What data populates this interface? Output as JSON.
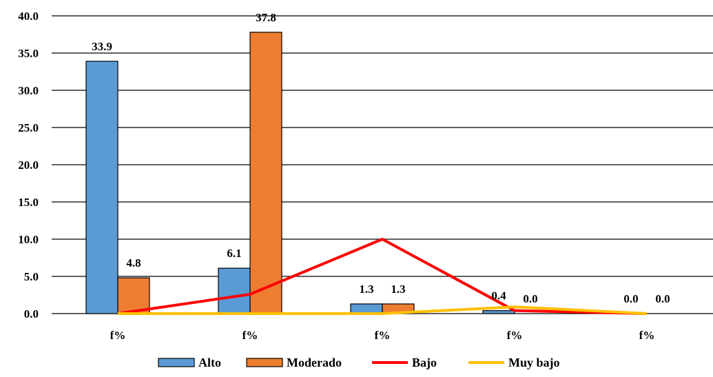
{
  "chart_data": {
    "type": "bar",
    "categories": [
      "f%",
      "f%",
      "f%",
      "f%",
      "f%"
    ],
    "ylim": [
      0,
      40
    ],
    "yticks": [
      "0.0",
      "5.0",
      "10.0",
      "15.0",
      "20.0",
      "25.0",
      "30.0",
      "35.0",
      "40.0"
    ],
    "grid": true,
    "legend_position": "bottom",
    "series": [
      {
        "name": "Alto",
        "kind": "bar",
        "color": "#5b9bd5",
        "values": [
          33.9,
          6.1,
          1.3,
          0.4,
          0.0
        ],
        "labels": [
          "33.9",
          "6.1",
          "1.3",
          "0.4",
          "0.0"
        ]
      },
      {
        "name": "Moderado",
        "kind": "bar",
        "color": "#ed7d31",
        "values": [
          4.8,
          37.8,
          1.3,
          0.0,
          0.0
        ],
        "labels": [
          "4.8",
          "37.8",
          "1.3",
          "0.0",
          "0.0"
        ]
      },
      {
        "name": "Bajo",
        "kind": "line",
        "color": "#ff0000",
        "values": [
          0.0,
          2.6,
          10.0,
          0.4,
          0.0
        ]
      },
      {
        "name": "Muy bajo",
        "kind": "line",
        "color": "#ffc000",
        "values": [
          0.0,
          0.0,
          0.0,
          0.9,
          0.0
        ]
      }
    ]
  }
}
